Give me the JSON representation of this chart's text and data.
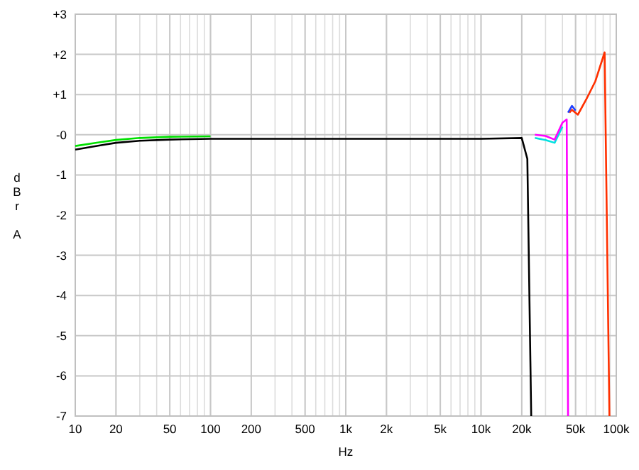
{
  "chart_data": {
    "type": "line",
    "xlabel": "Hz",
    "ylabel": "dBr A",
    "log": "x",
    "grid": true,
    "line_style": "solid",
    "xlim": [
      10,
      100000
    ],
    "ylim": [
      -7,
      3
    ],
    "xticks": [
      10,
      20,
      50,
      100,
      200,
      500,
      {
        "value": 1000,
        "label": "1k"
      },
      {
        "value": 2000,
        "label": "2k"
      },
      {
        "value": 5000,
        "label": "5k"
      },
      {
        "value": 10000,
        "label": "10k"
      },
      {
        "value": 20000,
        "label": "20k"
      },
      {
        "value": 50000,
        "label": "50k"
      },
      {
        "value": 100000,
        "label": "100k"
      }
    ],
    "yticks": [
      {
        "value": 3,
        "label": "+3"
      },
      {
        "value": 2,
        "label": "+2"
      },
      {
        "value": 1,
        "label": "+1"
      },
      {
        "value": 0,
        "label": "-0"
      },
      -1,
      -2,
      -3,
      -4,
      -5,
      -6,
      -7
    ],
    "series": [
      {
        "color": "#00e000",
        "x": [
          10,
          15,
          20,
          30,
          50,
          100
        ],
        "values": [
          -0.28,
          -0.19,
          -0.13,
          -0.08,
          -0.05,
          -0.04
        ]
      },
      {
        "color": "#000000",
        "x": [
          10,
          15,
          20,
          30,
          50,
          100,
          1000,
          10000,
          20000,
          22000,
          23500
        ],
        "values": [
          -0.37,
          -0.27,
          -0.2,
          -0.15,
          -0.12,
          -0.1,
          -0.1,
          -0.1,
          -0.08,
          -0.6,
          -7
        ]
      },
      {
        "color": "#00e0e0",
        "x": [
          25000,
          30000,
          35000,
          40000
        ],
        "values": [
          -0.08,
          -0.13,
          -0.2,
          0.2
        ]
      },
      {
        "color": "#ff00ff",
        "x": [
          25000,
          30000,
          35000,
          40000,
          43000,
          44000
        ],
        "values": [
          0.0,
          -0.03,
          -0.12,
          0.3,
          0.38,
          -7
        ]
      },
      {
        "color": "#ff3000",
        "x": [
          45000,
          47000,
          52000,
          60000,
          70000,
          82000,
          89000
        ],
        "values": [
          0.55,
          0.62,
          0.5,
          0.88,
          1.33,
          2.05,
          -7
        ]
      },
      {
        "color": "#2040ff",
        "x": [
          44000,
          47000,
          50000
        ],
        "values": [
          0.55,
          0.72,
          0.6
        ]
      }
    ]
  }
}
